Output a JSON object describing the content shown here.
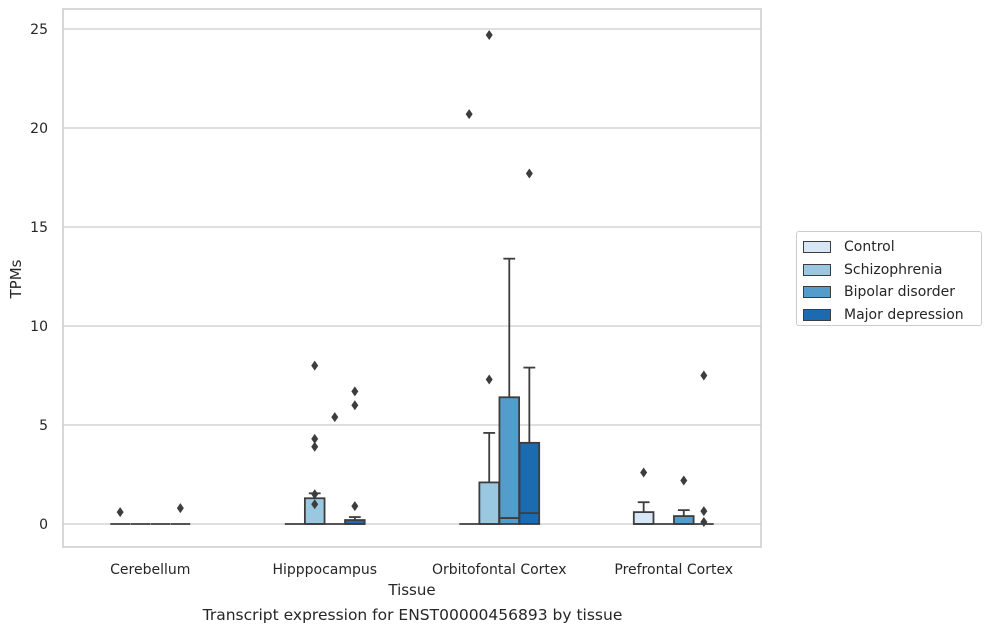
{
  "chart_data": {
    "type": "box",
    "title": "",
    "xlabel": "Tissue",
    "ylabel": "TPMs",
    "caption": "Transcript expression for ENST00000456893 by tissue",
    "categories": [
      "Cerebellum",
      "Hipppocampus",
      "Orbitofontal Cortex",
      "Prefrontal Cortex"
    ],
    "y_ticks": [
      0,
      5,
      10,
      15,
      20,
      25
    ],
    "ylim": [
      -1.2,
      26
    ],
    "grid": "horizontal",
    "legend_position": "right",
    "series": [
      {
        "name": "Control",
        "color": "#d8e7f5",
        "boxes": [
          {
            "min": 0,
            "q1": 0,
            "median": 0,
            "q3": 0,
            "max": 0,
            "outliers": [
              0.6
            ]
          },
          {
            "min": 0,
            "q1": 0,
            "median": 0,
            "q3": 0,
            "max": 0,
            "outliers": []
          },
          {
            "min": 0,
            "q1": 0,
            "median": 0,
            "q3": 0,
            "max": 0,
            "outliers": [
              20.7
            ]
          },
          {
            "min": 0,
            "q1": 0,
            "median": 0,
            "q3": 0.6,
            "max": 1.1,
            "outliers": [
              2.6
            ]
          }
        ]
      },
      {
        "name": "Schizophrenia",
        "color": "#9ac8e0",
        "boxes": [
          {
            "min": 0,
            "q1": 0,
            "median": 0,
            "q3": 0,
            "max": 0,
            "outliers": []
          },
          {
            "min": 0,
            "q1": 0,
            "median": 0,
            "q3": 1.3,
            "max": 1.55,
            "outliers": [
              8.0,
              4.3,
              3.9,
              1.5,
              1.0
            ]
          },
          {
            "min": 0,
            "q1": 0,
            "median": 0,
            "q3": 2.1,
            "max": 4.6,
            "outliers": [
              24.7,
              7.3
            ]
          },
          {
            "min": 0,
            "q1": 0,
            "median": 0,
            "q3": 0,
            "max": 0,
            "outliers": []
          }
        ]
      },
      {
        "name": "Bipolar disorder",
        "color": "#529dcc",
        "boxes": [
          {
            "min": 0,
            "q1": 0,
            "median": 0,
            "q3": 0,
            "max": 0,
            "outliers": []
          },
          {
            "min": 0,
            "q1": 0,
            "median": 0,
            "q3": 0,
            "max": 0,
            "outliers": [
              5.4
            ]
          },
          {
            "min": 0,
            "q1": 0,
            "median": 0.3,
            "q3": 6.4,
            "max": 13.4,
            "outliers": []
          },
          {
            "min": 0,
            "q1": 0,
            "median": 0,
            "q3": 0.4,
            "max": 0.7,
            "outliers": [
              2.2
            ]
          }
        ]
      },
      {
        "name": "Major depression",
        "color": "#1c6aaf",
        "boxes": [
          {
            "min": 0,
            "q1": 0,
            "median": 0,
            "q3": 0,
            "max": 0,
            "outliers": [
              0.8
            ]
          },
          {
            "min": 0,
            "q1": 0,
            "median": 0,
            "q3": 0.2,
            "max": 0.35,
            "outliers": [
              6.7,
              6.0,
              0.9
            ]
          },
          {
            "min": 0,
            "q1": 0,
            "median": 0.55,
            "q3": 4.1,
            "max": 7.9,
            "outliers": [
              17.7
            ]
          },
          {
            "min": 0,
            "q1": 0,
            "median": 0,
            "q3": 0,
            "max": 0,
            "outliers": [
              7.5,
              0.65,
              0.1
            ]
          }
        ]
      }
    ]
  }
}
